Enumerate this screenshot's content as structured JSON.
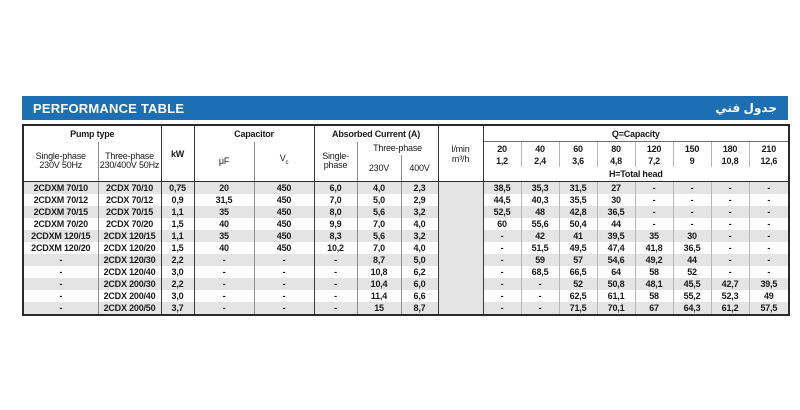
{
  "title_bar": {
    "title": "PERFORMANCE TABLE",
    "title_arabic": "جدول فني",
    "bar_color": "#1d6fb4"
  },
  "table": {
    "stripe_color": "#e4e4e4",
    "header": {
      "pump_type": "Pump type",
      "single_phase": "Single-phase",
      "single_phase_volt": "230V 50Hz",
      "three_phase": "Three-phase",
      "three_phase_volt": "230/400V 50Hz",
      "kw": "kW",
      "capacitor": "Capacitor",
      "uf": "μF",
      "vc_main": "V",
      "vc_sub": "c",
      "absorbed_current": "Absorbed Current (A)",
      "ac_single_phase_line1": "Single-",
      "ac_single_phase_line2": "phase",
      "ac_three_phase": "Three-phase",
      "ac_230v": "230V",
      "ac_400v": "400V",
      "flow_lmin": "l/min",
      "flow_m3h": "m³/h",
      "q_capacity": "Q=Capacity",
      "h_total_head": "H=Total head",
      "capacity_lmin": [
        "20",
        "40",
        "60",
        "80",
        "120",
        "150",
        "180",
        "210"
      ],
      "capacity_m3h": [
        "1,2",
        "2,4",
        "3,6",
        "4,8",
        "7,2",
        "9",
        "10,8",
        "12,6"
      ]
    },
    "rows": [
      [
        "2CDXM 70/10",
        "2CDX 70/10",
        "0,75",
        "20",
        "450",
        "6,0",
        "4,0",
        "2,3",
        "38,5",
        "35,3",
        "31,5",
        "27",
        "-",
        "-",
        "-",
        "-"
      ],
      [
        "2CDXM 70/12",
        "2CDX 70/12",
        "0,9",
        "31,5",
        "450",
        "7,0",
        "5,0",
        "2,9",
        "44,5",
        "40,3",
        "35,5",
        "30",
        "-",
        "-",
        "-",
        "-"
      ],
      [
        "2CDXM 70/15",
        "2CDX 70/15",
        "1,1",
        "35",
        "450",
        "8,0",
        "5,6",
        "3,2",
        "52,5",
        "48",
        "42,8",
        "36,5",
        "-",
        "-",
        "-",
        "-"
      ],
      [
        "2CDXM 70/20",
        "2CDX 70/20",
        "1,5",
        "40",
        "450",
        "9,9",
        "7,0",
        "4,0",
        "60",
        "55,6",
        "50,4",
        "44",
        "-",
        "-",
        "-",
        "-"
      ],
      [
        "2CDXM 120/15",
        "2CDX 120/15",
        "1,1",
        "35",
        "450",
        "8,3",
        "5,6",
        "3,2",
        "-",
        "42",
        "41",
        "39,5",
        "35",
        "30",
        "-",
        "-"
      ],
      [
        "2CDXM 120/20",
        "2CDX 120/20",
        "1,5",
        "40",
        "450",
        "10,2",
        "7,0",
        "4,0",
        "-",
        "51,5",
        "49,5",
        "47,4",
        "41,8",
        "36,5",
        "-",
        "-"
      ],
      [
        "-",
        "2CDX 120/30",
        "2,2",
        "-",
        "-",
        "-",
        "8,7",
        "5,0",
        "-",
        "59",
        "57",
        "54,6",
        "49,2",
        "44",
        "-",
        "-"
      ],
      [
        "-",
        "2CDX 120/40",
        "3,0",
        "-",
        "-",
        "-",
        "10,8",
        "6,2",
        "-",
        "68,5",
        "66,5",
        "64",
        "58",
        "52",
        "-",
        "-"
      ],
      [
        "-",
        "2CDX 200/30",
        "2,2",
        "-",
        "-",
        "-",
        "10,4",
        "6,0",
        "-",
        "-",
        "52",
        "50,8",
        "48,1",
        "45,5",
        "42,7",
        "39,5"
      ],
      [
        "-",
        "2CDX 200/40",
        "3,0",
        "-",
        "-",
        "-",
        "11,4",
        "6,6",
        "-",
        "-",
        "62,5",
        "61,1",
        "58",
        "55,2",
        "52,3",
        "49"
      ],
      [
        "-",
        "2CDX 200/50",
        "3,7",
        "-",
        "-",
        "-",
        "15",
        "8,7",
        "-",
        "-",
        "71,5",
        "70,1",
        "67",
        "64,3",
        "61,2",
        "57,5"
      ]
    ]
  }
}
